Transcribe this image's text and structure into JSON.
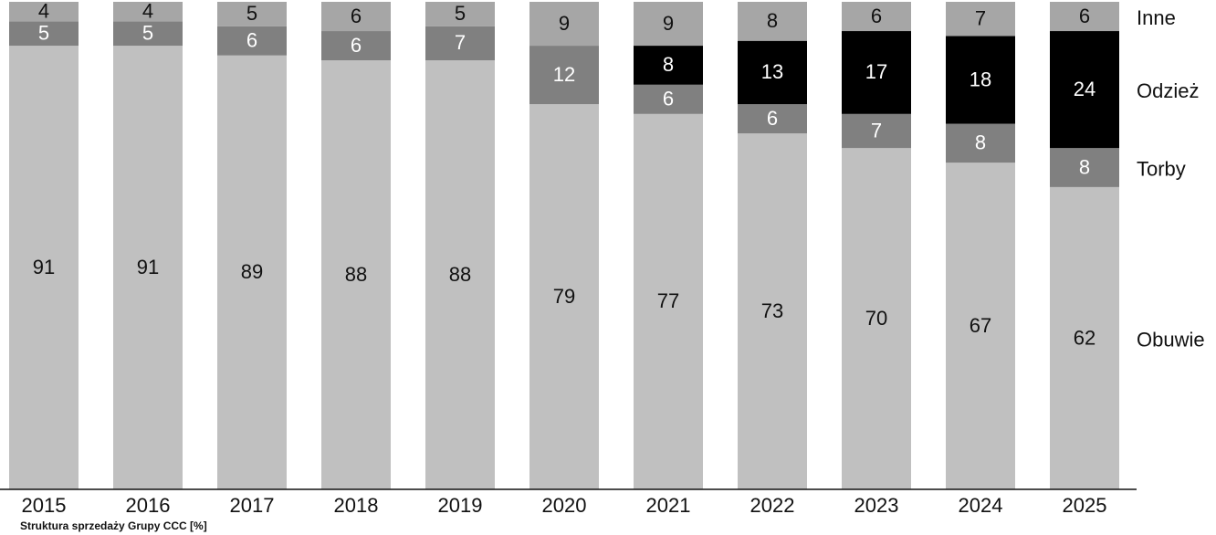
{
  "chart_data": {
    "type": "stacked_bar",
    "caption": "Struktura sprzedaży Grupy CCC [%]",
    "categories": [
      "2015",
      "2016",
      "2017",
      "2018",
      "2019",
      "2020",
      "2021",
      "2022",
      "2023",
      "2024",
      "2025"
    ],
    "series": [
      {
        "name": "Obuwie",
        "color": "#c0c0c0",
        "values": [
          91,
          91,
          89,
          88,
          88,
          79,
          77,
          73,
          70,
          67,
          62
        ]
      },
      {
        "name": "Torby",
        "color": "#808080",
        "values": [
          5,
          5,
          6,
          6,
          7,
          12,
          6,
          6,
          7,
          8,
          8
        ]
      },
      {
        "name": "Odzież",
        "color": "#000000",
        "values": [
          null,
          null,
          null,
          null,
          null,
          null,
          8,
          13,
          17,
          18,
          24
        ]
      },
      {
        "name": "Inne",
        "color": "#a6a6a6",
        "values": [
          4,
          4,
          5,
          6,
          5,
          9,
          9,
          8,
          6,
          7,
          6
        ]
      }
    ],
    "ylim": [
      0,
      100
    ]
  }
}
